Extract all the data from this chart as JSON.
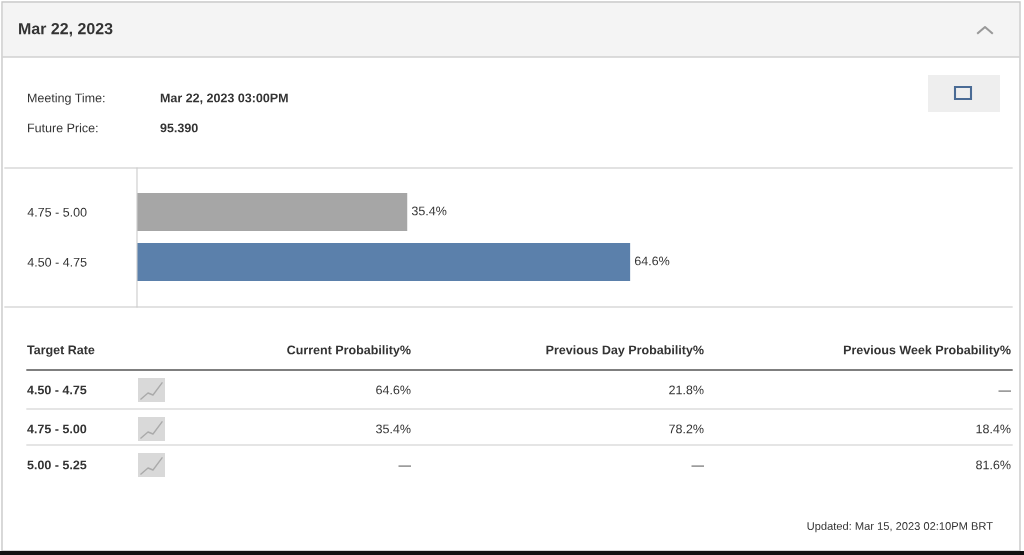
{
  "chart_data": [
    {
      "type": "other",
      "title": "Mar 22, 2023",
      "annotations": [
        "Meeting Time:",
        "Mar 22, 2023 03:00PM",
        "Future Price:",
        "95.390"
      ]
    },
    {
      "type": "bar",
      "orientation": "horizontal",
      "categories": [
        "4.75 - 5.00",
        "4.50 - 4.75"
      ],
      "values": [
        35.4,
        64.6
      ],
      "colors": [
        "#a6a6a6",
        "#5b80ab"
      ],
      "value_labels": [
        "35.4%",
        "64.6%"
      ]
    },
    {
      "type": "other",
      "categories": [
        "Target Rate",
        "Current Probability%",
        "Previous Day Probability%",
        "Previous Week Probability%"
      ],
      "annotations": [
        "4.50 - 4.75",
        "64.6%",
        "21.8%",
        "—",
        "4.75 - 5.00",
        "35.4%",
        "78.2%",
        "18.4%",
        "5.00 - 5.25",
        "—",
        "—",
        "81.6%"
      ]
    },
    {
      "type": "other",
      "annotations": [
        "Updated: Mar 15, 2023 02:10PM BRT"
      ]
    }
  ]
}
